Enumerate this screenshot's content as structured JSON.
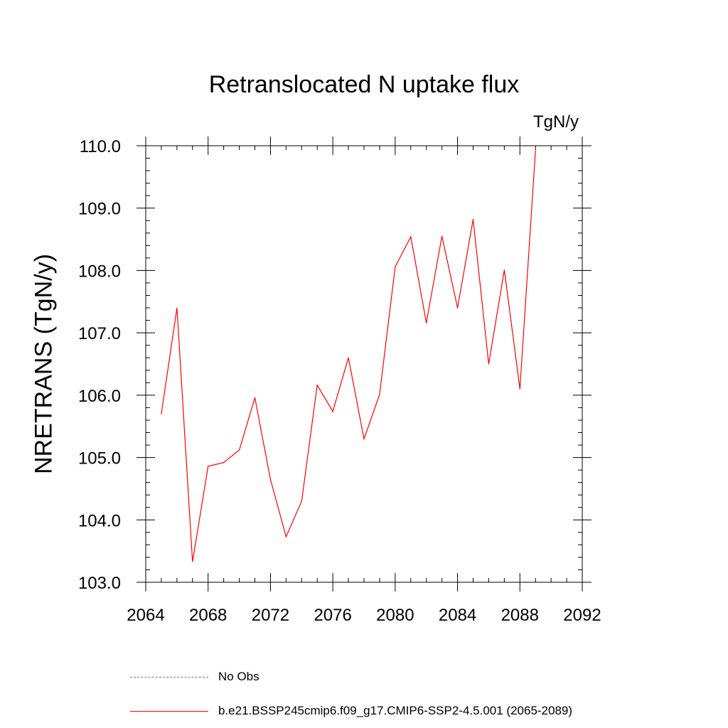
{
  "chart_data": {
    "type": "line",
    "title": "Retranslocated N uptake flux",
    "units": "TgN/y",
    "ylabel": "NRETRANS  (TgN/y)",
    "xlabel": "",
    "xlim": [
      2064,
      2092
    ],
    "ylim": [
      103.0,
      110.0
    ],
    "x_ticks": [
      2064,
      2068,
      2072,
      2076,
      2080,
      2084,
      2088,
      2092
    ],
    "x_tick_labels": [
      "2064",
      "2068",
      "2072",
      "2076",
      "2080",
      "2084",
      "2088",
      "2092"
    ],
    "y_ticks": [
      103.0,
      104.0,
      105.0,
      106.0,
      107.0,
      108.0,
      109.0,
      110.0
    ],
    "y_tick_labels": [
      "103.0",
      "104.0",
      "105.0",
      "106.0",
      "107.0",
      "108.0",
      "109.0",
      "110.0"
    ],
    "series": [
      {
        "name": "b.e21.BSSP245cmip6.f09_g17.CMIP6-SSP2-4.5.001 (2065-2089)",
        "color": "#ff0000",
        "x": [
          2065,
          2066,
          2067,
          2068,
          2069,
          2070,
          2071,
          2072,
          2073,
          2074,
          2075,
          2076,
          2077,
          2078,
          2079,
          2080,
          2081,
          2082,
          2083,
          2084,
          2085,
          2086,
          2087,
          2088,
          2089
        ],
        "values": [
          105.7,
          107.4,
          103.33,
          104.86,
          104.92,
          105.12,
          105.96,
          104.65,
          103.73,
          104.3,
          106.16,
          105.74,
          106.6,
          105.3,
          106.01,
          108.06,
          108.54,
          107.16,
          108.55,
          107.4,
          108.82,
          106.5,
          108.01,
          106.1,
          109.92
        ]
      }
    ],
    "legend": [
      {
        "label": "No Obs",
        "style": "dashed",
        "color": "#6d6dc8"
      },
      {
        "label": "b.e21.BSSP245cmip6.f09_g17.CMIP6-SSP2-4.5.001 (2065-2089)",
        "style": "solid",
        "color": "#ff0000"
      }
    ]
  }
}
